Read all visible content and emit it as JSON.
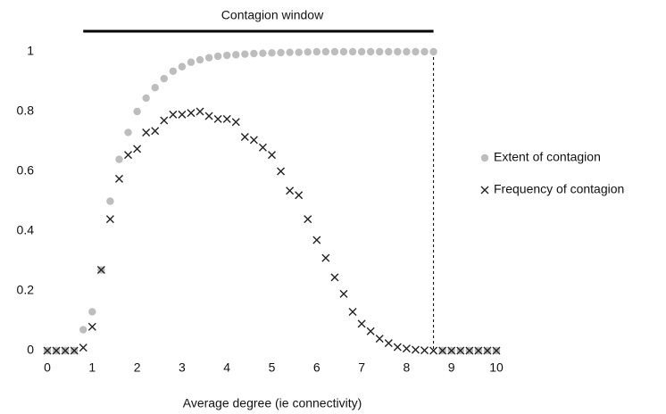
{
  "chart_data": {
    "type": "scatter",
    "annotation": "Contagion window",
    "window": [
      0.8,
      8.6
    ],
    "x_label": "Average degree (ie connectivity)",
    "x": [
      0,
      0.2,
      0.4,
      0.6,
      0.8,
      1,
      1.2,
      1.4,
      1.6,
      1.8,
      2,
      2.2,
      2.4,
      2.6,
      2.8,
      3,
      3.2,
      3.4,
      3.6,
      3.8,
      4,
      4.2,
      4.4,
      4.6,
      4.8,
      5,
      5.2,
      5.4,
      5.6,
      5.8,
      6,
      6.2,
      6.4,
      6.6,
      6.8,
      7,
      7.2,
      7.4,
      7.6,
      7.8,
      8,
      8.2,
      8.4,
      8.6,
      8.8,
      9,
      9.2,
      9.4,
      9.6,
      9.8,
      10
    ],
    "series": [
      {
        "name": "Extent of contagion",
        "color": "#bdbdbd",
        "marker": "circle",
        "values": [
          0,
          0,
          0,
          0,
          0.07,
          0.13,
          0.27,
          0.5,
          0.64,
          0.73,
          0.8,
          0.845,
          0.88,
          0.91,
          0.935,
          0.95,
          0.965,
          0.973,
          0.98,
          0.985,
          0.988,
          0.99,
          0.992,
          0.994,
          0.995,
          0.996,
          0.997,
          0.998,
          0.998,
          0.999,
          1,
          1,
          1,
          1,
          1,
          1,
          1,
          1,
          1,
          1,
          1,
          1,
          1,
          1,
          0,
          0,
          0,
          0,
          0,
          0,
          0
        ]
      },
      {
        "name": "Frequency of contagion",
        "color": "#222222",
        "marker": "cross",
        "values": [
          0,
          0,
          0,
          0,
          0.01,
          0.08,
          0.27,
          0.44,
          0.575,
          0.655,
          0.675,
          0.73,
          0.735,
          0.77,
          0.79,
          0.79,
          0.795,
          0.8,
          0.785,
          0.775,
          0.775,
          0.765,
          0.715,
          0.705,
          0.68,
          0.655,
          0.6,
          0.535,
          0.52,
          0.44,
          0.37,
          0.31,
          0.245,
          0.19,
          0.13,
          0.09,
          0.065,
          0.04,
          0.025,
          0.012,
          0.007,
          0.003,
          0.001,
          0,
          0,
          0,
          0,
          0,
          0,
          0,
          0
        ]
      }
    ],
    "xlim": [
      0,
      10
    ],
    "ylim": [
      0,
      1
    ],
    "xticks": [
      0,
      1,
      2,
      3,
      4,
      5,
      6,
      7,
      8,
      9,
      10
    ],
    "yticks": [
      0,
      0.2,
      0.4,
      0.6,
      0.8,
      1
    ],
    "legend": "right"
  }
}
